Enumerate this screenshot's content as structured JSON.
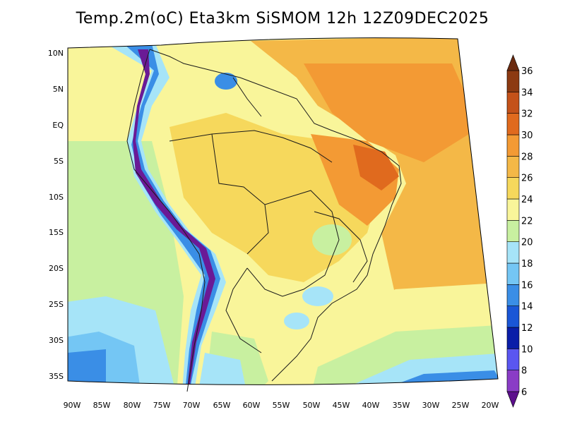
{
  "title": "Temp.2m(oC) Eta3km SiSMOM 12h 12Z09DEC2025",
  "map": {
    "lat_labels": [
      "10N",
      "5N",
      "EQ",
      "5S",
      "10S",
      "15S",
      "20S",
      "25S",
      "30S",
      "35S"
    ],
    "lon_labels": [
      "90W",
      "85W",
      "80W",
      "75W",
      "70W",
      "65W",
      "60W",
      "55W",
      "50W",
      "45W",
      "40W",
      "35W",
      "30W",
      "25W",
      "20W"
    ],
    "projection": "lambert-conformal",
    "region": "South America"
  },
  "colorbar": {
    "levels": [
      "36",
      "34",
      "32",
      "30",
      "28",
      "26",
      "24",
      "22",
      "20",
      "18",
      "16",
      "14",
      "12",
      "10",
      "8",
      "6"
    ],
    "colors": [
      "#6b2b10",
      "#8c3a12",
      "#c4521a",
      "#e06a1e",
      "#f39a34",
      "#f4b847",
      "#f6d85c",
      "#f9f59a",
      "#c8f0a0",
      "#a6e4f8",
      "#74c6f4",
      "#3a8ee6",
      "#1a56d6",
      "#0a1ea8",
      "#5a56f0",
      "#8a3cc6",
      "#6a1a96"
    ],
    "bin_colors_bottom_to_top": [
      "#5c0f8c",
      "#8a3cc6",
      "#5a56f0",
      "#0a1ea8",
      "#1a56d6",
      "#3a8ee6",
      "#74c6f4",
      "#a6e4f8",
      "#c8f0a0",
      "#f9f59a",
      "#f6d85c",
      "#f4b847",
      "#f39a34",
      "#e06a1e",
      "#c4521a",
      "#8c3a12",
      "#6b2b10"
    ]
  },
  "colors": {
    "ocean_warm": "#f6b44c",
    "land_warm": "#f5c960",
    "cool_ocean": "#a6e4f8",
    "andes": "#6a1a96"
  }
}
